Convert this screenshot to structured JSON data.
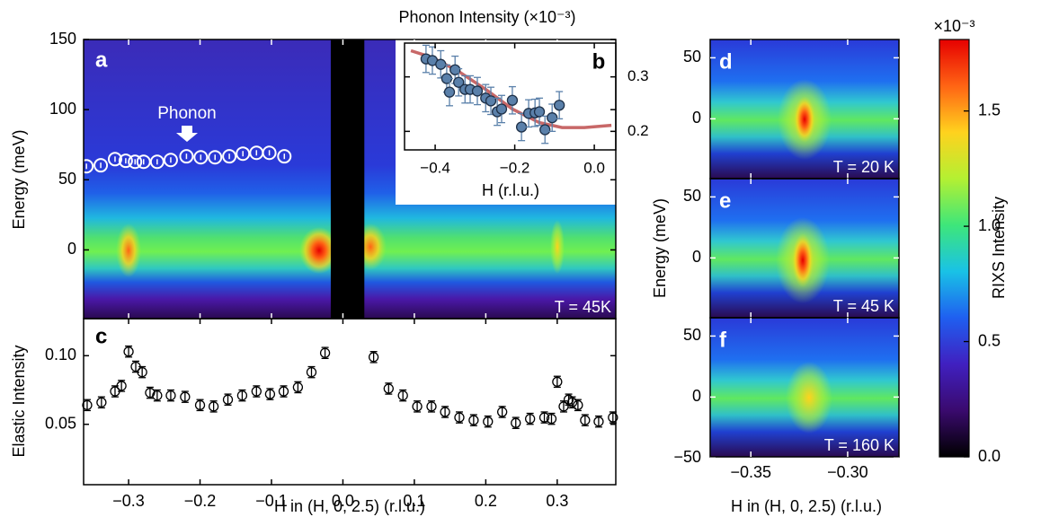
{
  "chart_data": [
    {
      "type": "scatter",
      "label": "a",
      "ylabel": "Energy (meV)",
      "temperature": "T = 45K",
      "xlim": [
        -0.363,
        0.382
      ],
      "ylim": [
        -49,
        150
      ],
      "yticks": [
        0,
        50,
        100,
        150
      ],
      "gap": [
        -0.017,
        0.03
      ],
      "series": [
        {
          "name": "Phonon",
          "color": "#ffffff",
          "x": [
            -0.359,
            -0.339,
            -0.319,
            -0.304,
            -0.291,
            -0.279,
            -0.26,
            -0.241,
            -0.219,
            -0.199,
            -0.179,
            -0.159,
            -0.14,
            -0.121,
            -0.103,
            -0.082
          ],
          "values": [
            59.6,
            60.3,
            64.7,
            63.5,
            62.8,
            62.8,
            62.8,
            64.1,
            66.7,
            66.0,
            66.0,
            66.7,
            68.6,
            69.2,
            69.2,
            66.7
          ]
        }
      ]
    },
    {
      "type": "scatter",
      "label": "b",
      "title": "Phonon Intensity (×10⁻³)",
      "xlabel": "H (r.l.u.)",
      "xlim": [
        -0.477,
        0.054
      ],
      "ylim": [
        0.166,
        0.362
      ],
      "xticks": [
        {
          "value": -0.4,
          "label": "−0.4"
        },
        {
          "value": -0.2,
          "label": "−0.2"
        },
        {
          "value": 0,
          "label": "0.0"
        }
      ],
      "yticks": [
        0.2,
        0.3
      ],
      "color": "#5a80aa",
      "x": [
        -0.423,
        -0.407,
        -0.386,
        -0.371,
        -0.364,
        -0.35,
        -0.341,
        -0.325,
        -0.312,
        -0.294,
        -0.273,
        -0.26,
        -0.244,
        -0.233,
        -0.206,
        -0.183,
        -0.165,
        -0.149,
        -0.138,
        -0.124,
        -0.106,
        -0.088
      ],
      "values": [
        0.333,
        0.33,
        0.323,
        0.297,
        0.272,
        0.313,
        0.29,
        0.277,
        0.277,
        0.274,
        0.261,
        0.256,
        0.236,
        0.241,
        0.257,
        0.208,
        0.233,
        0.234,
        0.236,
        0.203,
        0.225,
        0.248
      ],
      "errors": [
        0.025,
        0.025,
        0.025,
        0.025,
        0.025,
        0.025,
        0.025,
        0.025,
        0.025,
        0.025,
        0.025,
        0.025,
        0.025,
        0.025,
        0.025,
        0.025,
        0.025,
        0.025,
        0.025,
        0.025,
        0.025,
        0.025
      ],
      "fit": {
        "color": "#c86868",
        "x": [
          -0.461,
          -0.409,
          -0.341,
          -0.273,
          -0.206,
          -0.138,
          -0.081,
          -0.025,
          0.043
        ],
        "values": [
          0.348,
          0.336,
          0.31,
          0.277,
          0.241,
          0.216,
          0.207,
          0.207,
          0.211
        ]
      }
    },
    {
      "type": "scatter",
      "label": "c",
      "ylabel": "Elastic Intensity",
      "xlabel": "H in (H, 0, 2.5) (r.l.u.)",
      "xlim": [
        -0.363,
        0.382
      ],
      "ylim": [
        0.006,
        0.127
      ],
      "xticks": [
        {
          "value": -0.3,
          "label": "−0.3"
        },
        {
          "value": -0.2,
          "label": "−0.2"
        },
        {
          "value": -0.1,
          "label": "−0.1"
        },
        {
          "value": 0,
          "label": "0.0"
        },
        0.1,
        0.2,
        0.3
      ],
      "yticks": [
        0.05,
        {
          "value": 0.1,
          "label": "0.10"
        }
      ],
      "color": "#000000",
      "x": [
        -0.358,
        -0.338,
        -0.319,
        -0.31,
        -0.3,
        -0.29,
        -0.281,
        -0.27,
        -0.26,
        -0.241,
        -0.221,
        -0.2,
        -0.181,
        -0.161,
        -0.141,
        -0.121,
        -0.102,
        -0.083,
        -0.063,
        -0.044,
        -0.025,
        0.043,
        0.064,
        0.084,
        0.104,
        0.124,
        0.143,
        0.163,
        0.183,
        0.203,
        0.223,
        0.242,
        0.262,
        0.282,
        0.292,
        0.3,
        0.309,
        0.316,
        0.321,
        0.329,
        0.339,
        0.358,
        0.378
      ],
      "values": [
        0.064,
        0.066,
        0.074,
        0.078,
        0.103,
        0.092,
        0.088,
        0.073,
        0.071,
        0.071,
        0.07,
        0.064,
        0.063,
        0.068,
        0.071,
        0.074,
        0.072,
        0.074,
        0.077,
        0.088,
        0.102,
        0.099,
        0.076,
        0.071,
        0.063,
        0.063,
        0.059,
        0.055,
        0.053,
        0.052,
        0.059,
        0.051,
        0.054,
        0.055,
        0.054,
        0.081,
        0.063,
        0.068,
        0.066,
        0.064,
        0.053,
        0.052,
        0.055
      ],
      "errors": [
        0.004,
        0.004,
        0.004,
        0.004,
        0.004,
        0.004,
        0.004,
        0.004,
        0.004,
        0.004,
        0.004,
        0.004,
        0.004,
        0.004,
        0.004,
        0.004,
        0.004,
        0.004,
        0.004,
        0.004,
        0.004,
        0.004,
        0.004,
        0.004,
        0.004,
        0.004,
        0.004,
        0.004,
        0.004,
        0.004,
        0.004,
        0.004,
        0.004,
        0.004,
        0.004,
        0.004,
        0.004,
        0.004,
        0.004,
        0.004,
        0.004,
        0.004,
        0.004
      ]
    },
    {
      "type": "heatmap",
      "label": "d",
      "temperature": "T = 20 K",
      "xlim": [
        -0.371,
        -0.2735
      ],
      "ylim": [
        -49,
        65
      ],
      "yticks": [
        0,
        50
      ]
    },
    {
      "type": "heatmap",
      "label": "e",
      "temperature": "T = 45 K",
      "ylabel": "Energy (meV)",
      "xlim": [
        -0.371,
        -0.2735
      ],
      "ylim": [
        -49,
        65
      ],
      "yticks": [
        0,
        50
      ]
    },
    {
      "type": "heatmap",
      "label": "f",
      "temperature": "T = 160 K",
      "xlabel": "H in (H, 0, 2.5) (r.l.u.)",
      "xlim": [
        -0.371,
        -0.2735
      ],
      "ylim": [
        -49,
        65
      ],
      "yticks": [
        {
          "value": -50,
          "label": "−50"
        },
        0,
        50
      ],
      "xticks": [
        {
          "value": -0.35,
          "label": "−0.35"
        },
        {
          "value": -0.3,
          "label": "−0.30"
        }
      ]
    },
    {
      "type": "colorbar",
      "title": "RIXS Intensity",
      "unit": "×10⁻³",
      "ylim": [
        0,
        1.81
      ],
      "yticks": [
        {
          "value": 0,
          "label": "0.0"
        },
        0.5,
        {
          "value": 1,
          "label": "1.0"
        },
        1.5
      ],
      "colormap": [
        "#000000",
        "#3a0a6e",
        "#4020c0",
        "#1f5ff0",
        "#19c2e6",
        "#3ee67a",
        "#b4f032",
        "#ffd21e",
        "#ff6414",
        "#e60000"
      ]
    }
  ]
}
